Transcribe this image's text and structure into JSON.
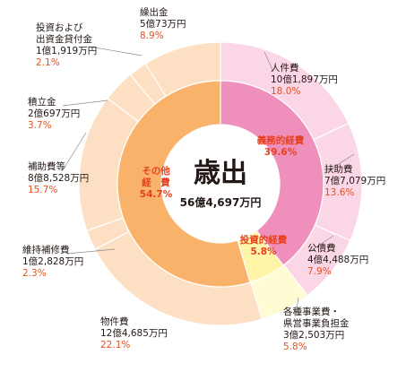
{
  "chart_data": {
    "type": "pie",
    "title": "歳出",
    "total": "56億4,697万円",
    "inner": [
      {
        "name": "義務的経費",
        "percent": 39.6,
        "percent_label": "39.6%",
        "color": "#ef8fbb"
      },
      {
        "name": "投資的経費",
        "percent": 5.8,
        "percent_label": "5.8%",
        "color": "#fff5a8"
      },
      {
        "name": "その他経費",
        "name_line1": "その他",
        "name_line2": "経　費",
        "percent": 54.7,
        "percent_label": "54.7%",
        "color": "#f8b26a"
      }
    ],
    "outer": [
      {
        "name": "人件費",
        "amount": "10億1,897万円",
        "percent": 18.0,
        "percent_label": "18.0%",
        "color": "#fbd6e6"
      },
      {
        "name": "扶助費",
        "amount": "7億7,079万円",
        "percent": 13.6,
        "percent_label": "13.6%",
        "color": "#fbd6e6"
      },
      {
        "name": "公債費",
        "amount": "4億4,488万円",
        "percent": 7.9,
        "percent_label": "7.9%",
        "color": "#fbd6e6"
      },
      {
        "name": "各種事業費・県営事業負担金",
        "name_line1": "各種事業費・",
        "name_line2": "県営事業負担金",
        "amount": "3億2,503万円",
        "percent": 5.8,
        "percent_label": "5.8%",
        "color": "#fffbd2"
      },
      {
        "name": "物件費",
        "amount": "12億4,685万円",
        "percent": 22.1,
        "percent_label": "22.1%",
        "color": "#fde0c4"
      },
      {
        "name": "維持補修費",
        "amount": "1億2,828万円",
        "percent": 2.3,
        "percent_label": "2.3%",
        "color": "#fde0c4"
      },
      {
        "name": "補助費等",
        "amount": "8億8,528万円",
        "percent": 15.7,
        "percent_label": "15.7%",
        "color": "#fde0c4"
      },
      {
        "name": "積立金",
        "amount": "2億697万円",
        "percent": 3.7,
        "percent_label": "3.7%",
        "color": "#fde0c4"
      },
      {
        "name": "投資および出資金貸付金",
        "name_line1": "投資および",
        "name_line2": "出資金貸付金",
        "amount": "1億1,919万円",
        "percent": 2.1,
        "percent_label": "2.1%",
        "color": "#fde0c4"
      },
      {
        "name": "繰出金",
        "amount": "5億73万円",
        "percent": 8.9,
        "percent_label": "8.9%",
        "color": "#fde0c4"
      }
    ]
  }
}
